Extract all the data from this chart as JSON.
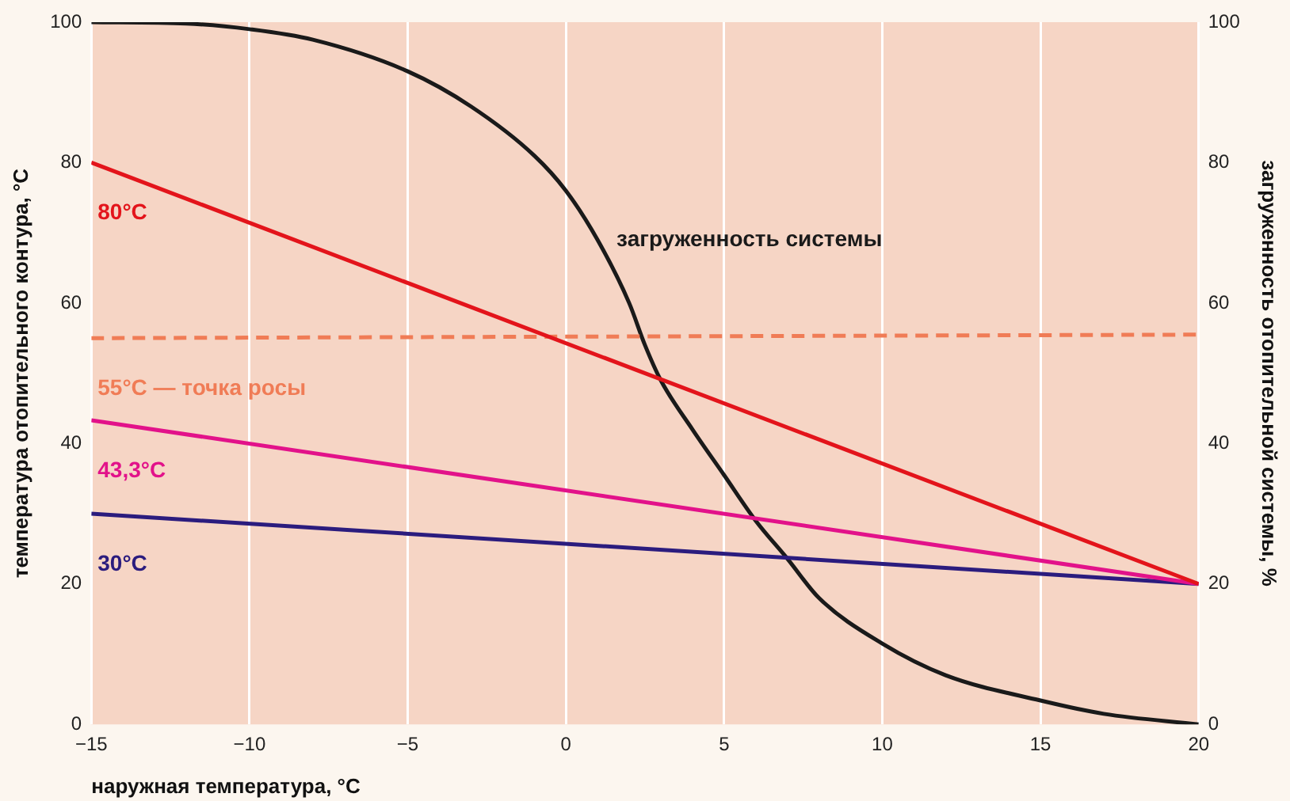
{
  "chart_data": {
    "type": "line",
    "xlabel": "наружная температура, °C",
    "ylabel": "температура отопительного контура, °C",
    "y2label": "загруженность отопительной системы, %",
    "xlim": [
      -15,
      20
    ],
    "xticks": [
      {
        "value": -15,
        "label": "−15"
      },
      {
        "value": -10,
        "label": "−10"
      },
      {
        "value": -5,
        "label": "−5"
      },
      0,
      5,
      10,
      15,
      20
    ],
    "ylim": [
      0,
      100
    ],
    "yticks": [
      0,
      20,
      40,
      60,
      80,
      100
    ],
    "y2lim": [
      0,
      100
    ],
    "y2ticks": [
      0,
      20,
      40,
      60,
      80,
      100
    ],
    "grid": "x",
    "legend": false,
    "marker": "none",
    "series": [
      {
        "name": "80°C",
        "color": "#e3141b",
        "x": [
          -15,
          20
        ],
        "values": [
          80,
          20
        ]
      },
      {
        "name": "55°C — точка росы",
        "color": "#f07c56",
        "line_style": "dashed",
        "x": [
          -15,
          20
        ],
        "values": [
          55,
          55.5
        ]
      },
      {
        "name": "43,3°C",
        "color": "#e2128a",
        "x": [
          -15,
          20
        ],
        "values": [
          43.3,
          20
        ]
      },
      {
        "name": "30°C",
        "color": "#2b1c7e",
        "x": [
          -15,
          20
        ],
        "values": [
          30,
          20
        ]
      },
      {
        "name": "загруженность системы",
        "color": "#1a1a1a",
        "axis": "y2",
        "x": [
          -15,
          -12,
          -10,
          -8,
          -5,
          -3,
          -1,
          0,
          1,
          2,
          2.5,
          3,
          4,
          5,
          6,
          7,
          8,
          10,
          12,
          15,
          17,
          20
        ],
        "values": [
          100,
          99.8,
          99,
          97.5,
          93,
          88,
          81,
          76,
          69,
          60,
          54,
          49,
          42,
          35.5,
          29,
          23.6,
          18,
          11.5,
          7,
          3.4,
          1.5,
          0
        ]
      }
    ]
  }
}
